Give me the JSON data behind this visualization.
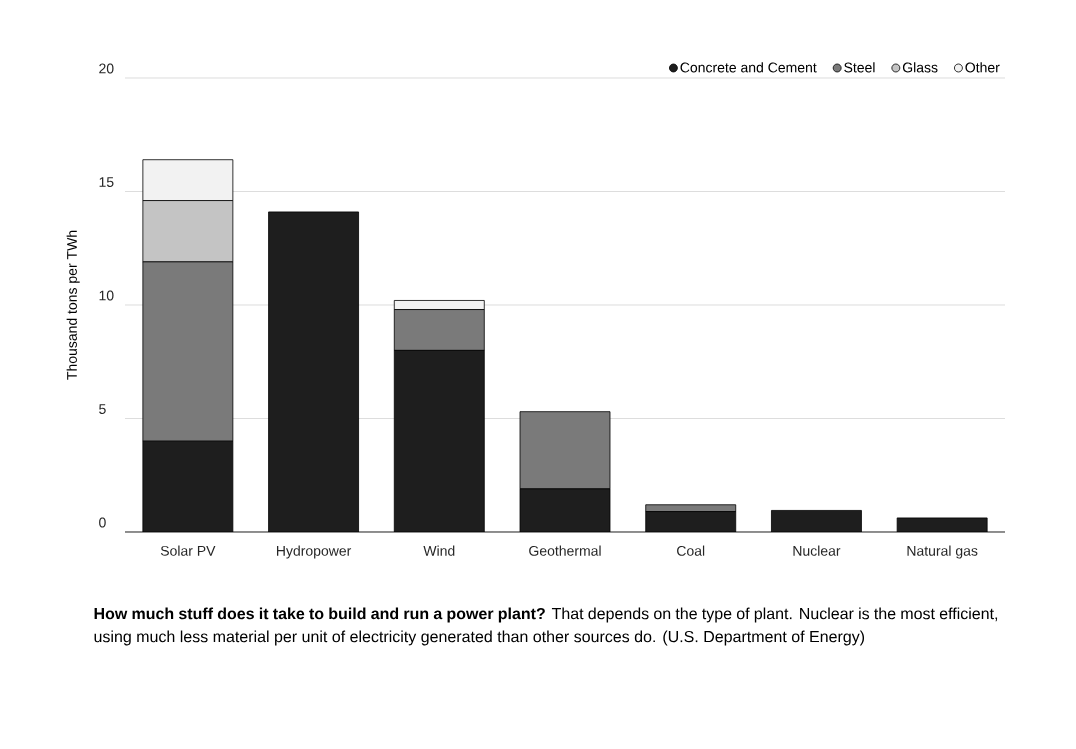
{
  "chart_data": {
    "type": "bar",
    "stacked": true,
    "ylabel": "Thousand tons per TWh",
    "categories": [
      "Solar PV",
      "Hydropower",
      "Wind",
      "Geothermal",
      "Coal",
      "Nuclear",
      "Natural gas"
    ],
    "series": [
      {
        "name": "Concrete and Cement",
        "color": "#1e1e1e",
        "values": [
          4.0,
          14.1,
          8.0,
          1.9,
          0.9,
          0.95,
          0.62
        ]
      },
      {
        "name": "Steel",
        "color": "#7a7a7a",
        "values": [
          7.9,
          0,
          1.8,
          3.4,
          0.3,
          0,
          0
        ]
      },
      {
        "name": "Glass",
        "color": "#c4c4c4",
        "values": [
          2.7,
          0,
          0,
          0,
          0,
          0,
          0
        ]
      },
      {
        "name": "Other",
        "color": "#f2f2f2",
        "values": [
          1.8,
          0,
          0.4,
          0,
          0,
          0,
          0
        ]
      }
    ],
    "ylim": [
      0,
      20
    ],
    "yticks": [
      0,
      5,
      10,
      15,
      20
    ],
    "grid": "y",
    "legend": "top right",
    "marker": "circle",
    "annotations": [
      "**How much stuff does it take to build and run a power plant?** That depends on the type of plant. Nuclear is the most efficient, using much less material per unit of electricity generated than other sources do. (U.S. Department of Energy)"
    ]
  }
}
